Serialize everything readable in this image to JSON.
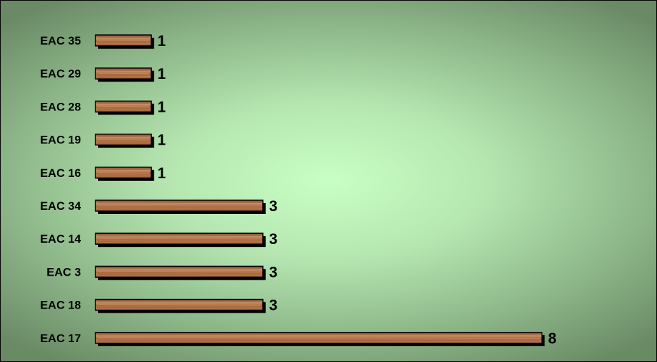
{
  "chart_data": {
    "type": "bar",
    "orientation": "horizontal",
    "categories": [
      "EAC 35",
      "EAC 29",
      "EAC 28",
      "EAC 19",
      "EAC 16",
      "EAC 34",
      "EAC 14",
      "EAC 3",
      "EAC 18",
      "EAC 17"
    ],
    "values": [
      1,
      1,
      1,
      1,
      1,
      3,
      3,
      3,
      3,
      8
    ],
    "value_labels": [
      "1",
      "1",
      "1",
      "1",
      "1",
      "3",
      "3",
      "3",
      "3",
      "8"
    ],
    "title": "",
    "xlabel": "",
    "ylabel": "",
    "xlim": [
      0,
      8
    ],
    "grid": false,
    "legend": "none",
    "colors": {
      "bar_fill": "#a8683c",
      "bar_light": "#c89068",
      "bar_dark": "#7a4526",
      "bar_shadow": "#000000",
      "background_center": "#c8ffc4",
      "background_edge": "#6a8a66"
    }
  }
}
